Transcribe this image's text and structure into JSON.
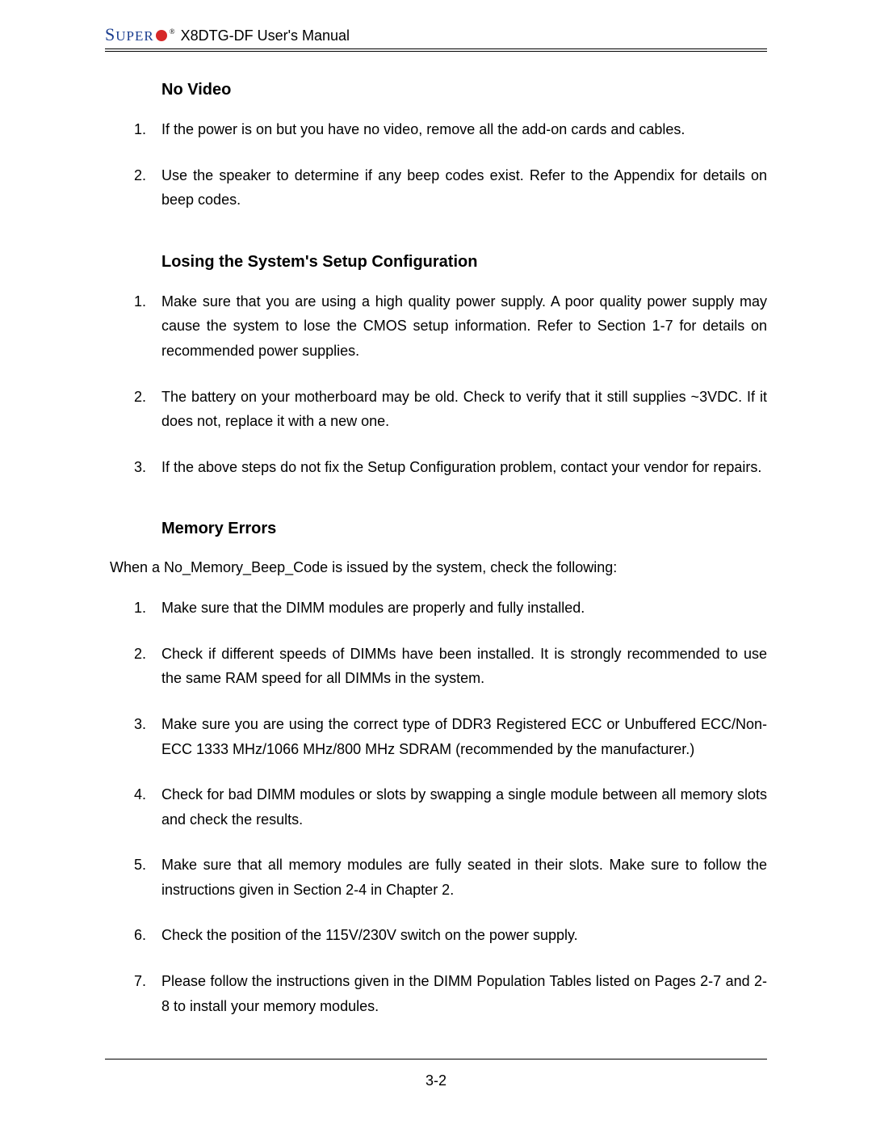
{
  "header": {
    "logo_main": "S",
    "logo_caps": "UPER",
    "manual_title": "X8DTG-DF User's Manual"
  },
  "sections": {
    "no_video": {
      "heading": "No Video",
      "items": [
        "If the power is on but you have no video, remove all the add-on cards and cables.",
        "Use the speaker to determine if any beep codes exist. Refer to the Appendix for details on beep codes."
      ]
    },
    "losing_config": {
      "heading": "Losing the System's Setup Configuration",
      "items": [
        "Make sure that you are using a high quality power supply.  A poor quality power supply may cause the system to lose the CMOS setup information. Refer to Section 1-7 for details on recommended power supplies.",
        "The battery on your motherboard may be old.  Check to verify that it still supplies ~3VDC.  If it does not, replace it with a new one.",
        "If the above steps do not fix the Setup Configuration problem, contact your vendor for repairs."
      ]
    },
    "memory_errors": {
      "heading": "Memory Errors",
      "intro": "When a No_Memory_Beep_Code is issued by the system, check the following:",
      "items": [
        "Make sure that the DIMM modules are properly and fully installed.",
        "Check if different speeds of DIMMs have been installed. It is strongly recommended to use the same RAM speed for all DIMMs in the system.",
        "Make sure you are using the correct type of DDR3 Registered ECC or Unbuffered ECC/Non-ECC 1333 MHz/1066 MHz/800 MHz SDRAM (recommended by the manufacturer.)",
        "Check for bad DIMM modules or slots by swapping a single module between all memory slots and check the results.",
        "Make sure that all memory modules are fully seated in their slots. Make sure to follow the instructions given in Section 2-4 in Chapter 2.",
        "Check the position of the 115V/230V switch on the power supply.",
        "Please follow the instructions given in the DIMM Population Tables listed on Pages 2-7 and 2-8 to install your memory modules."
      ]
    }
  },
  "page_number": "3-2",
  "colors": {
    "logo_blue": "#1a3d8f",
    "logo_red": "#d62828",
    "text": "#000000",
    "background": "#ffffff"
  },
  "typography": {
    "body_fontsize": 18,
    "heading_fontsize": 20,
    "logo_fontsize": 22
  }
}
